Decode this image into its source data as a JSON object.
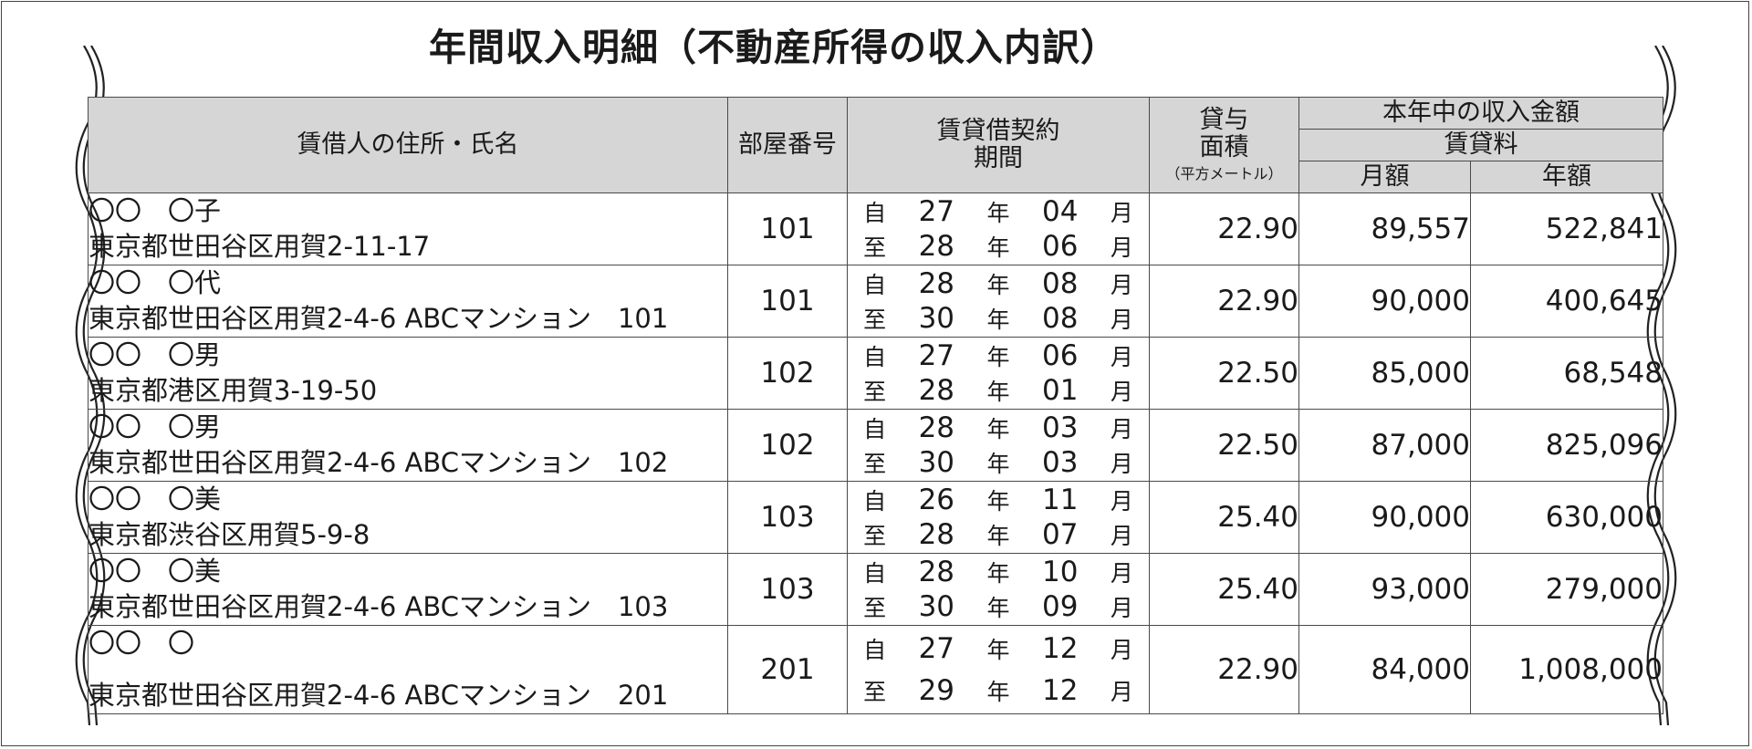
{
  "title": "年間収入明細（不動産所得の収入内訳）",
  "headers": {
    "tenant": "賃借人の住所・氏名",
    "room": "部屋番号",
    "period_l1": "賃貸借契約",
    "period_l2": "期間",
    "area_l1": "貸与",
    "area_l2": "面積",
    "area_unit": "（平方メートル）",
    "income": "本年中の収入金額",
    "rent": "賃貸料",
    "monthly": "月額",
    "annual": "年額"
  },
  "labels": {
    "from": "自",
    "to": "至",
    "year": "年",
    "month": "月"
  },
  "rows": [
    {
      "name": "〇〇　〇子",
      "address": "東京都世田谷区用賀2-11-17",
      "room": "101",
      "from_y": "27",
      "from_m": "04",
      "to_y": "28",
      "to_m": "06",
      "area": "22.90",
      "monthly": "89,557",
      "annual": "522,841"
    },
    {
      "name": "〇〇　〇代",
      "address": "東京都世田谷区用賀2-4-6 ABCマンション　101",
      "room": "101",
      "from_y": "28",
      "from_m": "08",
      "to_y": "30",
      "to_m": "08",
      "area": "22.90",
      "monthly": "90,000",
      "annual": "400,645"
    },
    {
      "name": "〇〇　〇男",
      "address": "東京都港区用賀3-19-50",
      "room": "102",
      "from_y": "27",
      "from_m": "06",
      "to_y": "28",
      "to_m": "01",
      "area": "22.50",
      "monthly": "85,000",
      "annual": "68,548"
    },
    {
      "name": "〇〇　〇男",
      "address": "東京都世田谷区用賀2-4-6 ABCマンション　102",
      "room": "102",
      "from_y": "28",
      "from_m": "03",
      "to_y": "30",
      "to_m": "03",
      "area": "22.50",
      "monthly": "87,000",
      "annual": "825,096"
    },
    {
      "name": "〇〇　〇美",
      "address": "東京都渋谷区用賀5-9-8",
      "room": "103",
      "from_y": "26",
      "from_m": "11",
      "to_y": "28",
      "to_m": "07",
      "area": "25.40",
      "monthly": "90,000",
      "annual": "630,000"
    },
    {
      "name": "〇〇　〇美",
      "address": "東京都世田谷区用賀2-4-6 ABCマンション　103",
      "room": "103",
      "from_y": "28",
      "from_m": "10",
      "to_y": "30",
      "to_m": "09",
      "area": "25.40",
      "monthly": "93,000",
      "annual": "279,000"
    },
    {
      "name": "〇〇　〇",
      "address": "東京都世田谷区用賀2-4-6 ABCマンション　201",
      "room": "201",
      "from_y": "27",
      "from_m": "12",
      "to_y": "29",
      "to_m": "12",
      "area": "22.90",
      "monthly": "84,000",
      "annual": "1,008,000"
    }
  ]
}
